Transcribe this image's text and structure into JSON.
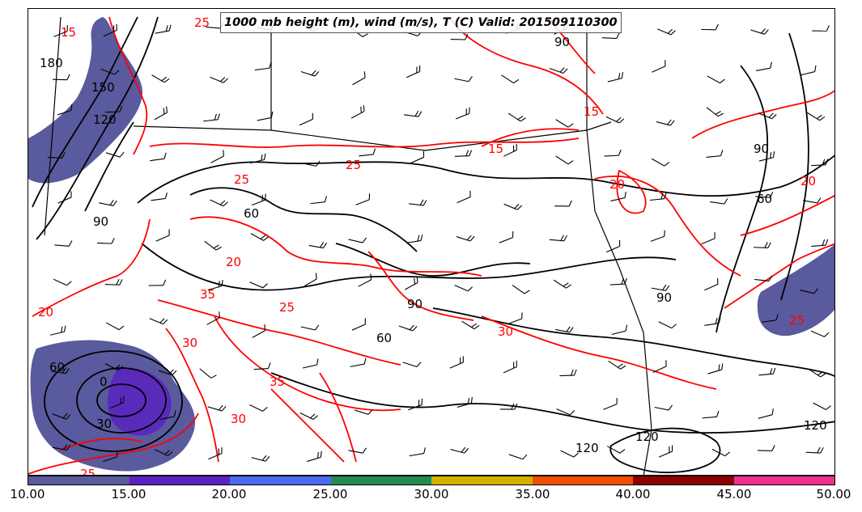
{
  "title": "1000 mb height (m), wind (m/s), T (C) Valid: 201509110300",
  "colors": {
    "height_contour": "#000000",
    "temperature_contour": "#ff0000",
    "shading": [
      "#5a5a9e",
      "#5b22c0",
      "#4a6cf0",
      "#228b50",
      "#d4b000",
      "#f05000",
      "#8b0000",
      "#f03090"
    ]
  },
  "colorbar": {
    "ticks": [
      "10.00",
      "15.00",
      "20.00",
      "25.00",
      "30.00",
      "35.00",
      "40.00",
      "45.00",
      "50.00"
    ]
  },
  "height_contour_labels": [
    "180",
    "150",
    "120",
    "90",
    "60",
    "30",
    "0",
    "60",
    "90",
    "60",
    "90",
    "60",
    "90",
    "90",
    "120",
    "120",
    "120"
  ],
  "temperature_contour_labels": [
    "15",
    "25",
    "20",
    "25",
    "35",
    "30",
    "30",
    "35",
    "25",
    "30",
    "15",
    "20",
    "20",
    "25",
    "15",
    "20",
    "25",
    "25"
  ]
}
